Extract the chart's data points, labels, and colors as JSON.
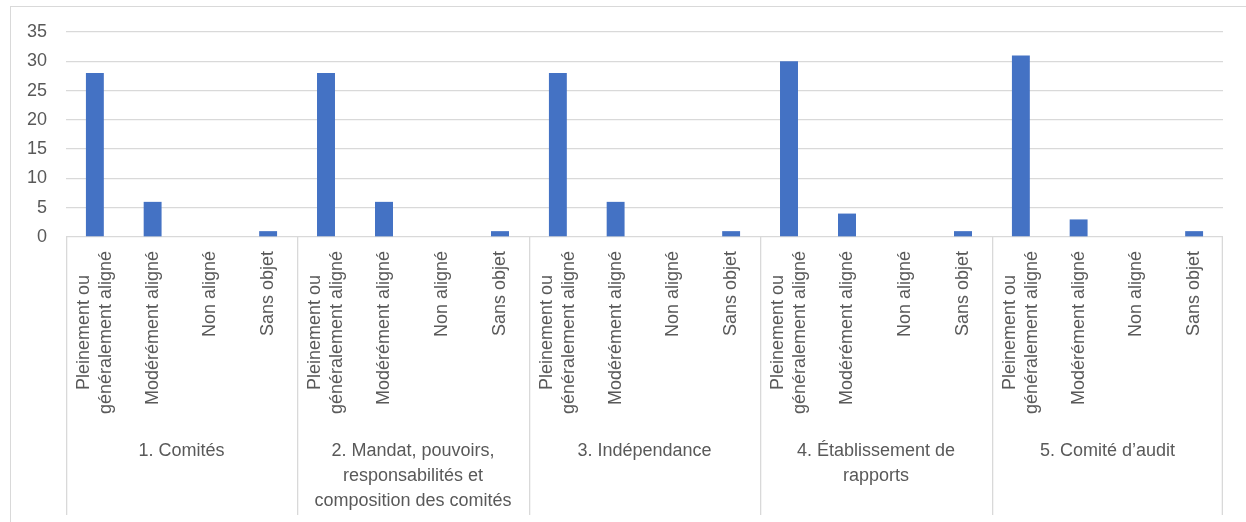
{
  "chart_data": [
    {
      "type": "bar",
      "categories": [
        "Pleinement ou généralement aligné",
        "Modérément aligné",
        "Non aligné",
        "Sans objet"
      ],
      "values": [
        28,
        6,
        0,
        1
      ],
      "color": "#4472c4",
      "xlabel": "1. Comités",
      "ylim": [
        0,
        35
      ],
      "yticks": [
        0,
        5,
        10,
        15,
        20,
        25,
        30,
        35
      ],
      "grid": "y"
    },
    {
      "type": "bar",
      "categories": [
        "Pleinement ou généralement aligné",
        "Modérément aligné",
        "Non aligné",
        "Sans objet"
      ],
      "values": [
        28,
        6,
        0,
        1
      ],
      "color": "#4472c4",
      "xlabel": "2. Mandat, pouvoirs, responsabilités et composition des comités",
      "ylim": [
        0,
        35
      ],
      "yticks": [
        0,
        5,
        10,
        15,
        20,
        25,
        30,
        35
      ],
      "grid": "y",
      "tick_labels": "x"
    },
    {
      "type": "bar",
      "categories": [
        "Pleinement ou généralement aligné",
        "Modérément aligné",
        "Non aligné",
        "Sans objet"
      ],
      "values": [
        28,
        6,
        0,
        1
      ],
      "color": "#4472c4",
      "xlabel": "3. Indépendance",
      "ylim": [
        0,
        35
      ],
      "yticks": [
        0,
        5,
        10,
        15,
        20,
        25,
        30,
        35
      ],
      "grid": "y",
      "tick_labels": "x"
    },
    {
      "type": "bar",
      "categories": [
        "Pleinement ou généralement aligné",
        "Modérément aligné",
        "Non aligné",
        "Sans objet"
      ],
      "values": [
        30,
        4,
        0,
        1
      ],
      "color": "#4472c4",
      "xlabel": "4. Établissement de rapports",
      "ylim": [
        0,
        35
      ],
      "yticks": [
        0,
        5,
        10,
        15,
        20,
        25,
        30,
        35
      ],
      "grid": "y",
      "tick_labels": "x"
    },
    {
      "type": "bar",
      "categories": [
        "Pleinement ou généralement aligné",
        "Modérément aligné",
        "Non aligné",
        "Sans objet"
      ],
      "values": [
        31,
        3,
        0,
        1
      ],
      "color": "#4472c4",
      "xlabel": "5. Comité d’audit",
      "ylim": [
        0,
        35
      ],
      "yticks": [
        0,
        5,
        10,
        15,
        20,
        25,
        30,
        35
      ],
      "grid": "y",
      "tick_labels": "x"
    }
  ]
}
